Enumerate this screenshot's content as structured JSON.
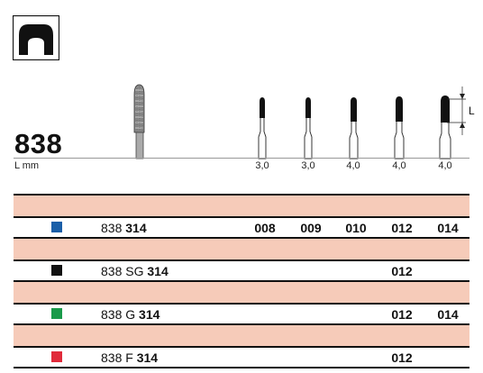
{
  "model": "838",
  "unit_label": "L mm",
  "lengths": [
    "3,0",
    "3,0",
    "4,0",
    "4,0",
    "4,0"
  ],
  "dimension_label": "L",
  "rows": [
    {
      "color": "#1a5fa8",
      "prefix": "838",
      "name": "314",
      "codes": [
        "008",
        "009",
        "010",
        "012",
        "014"
      ]
    },
    {
      "color": "#111111",
      "prefix": "838 SG",
      "name": "314",
      "codes": [
        "",
        "",
        "",
        "012",
        ""
      ]
    },
    {
      "color": "#1a9a4a",
      "prefix": "838 G",
      "name": "314",
      "codes": [
        "",
        "",
        "",
        "012",
        "014"
      ]
    },
    {
      "color": "#e02a3a",
      "prefix": "838 F",
      "name": "314",
      "codes": [
        "",
        "",
        "",
        "012",
        ""
      ]
    }
  ]
}
